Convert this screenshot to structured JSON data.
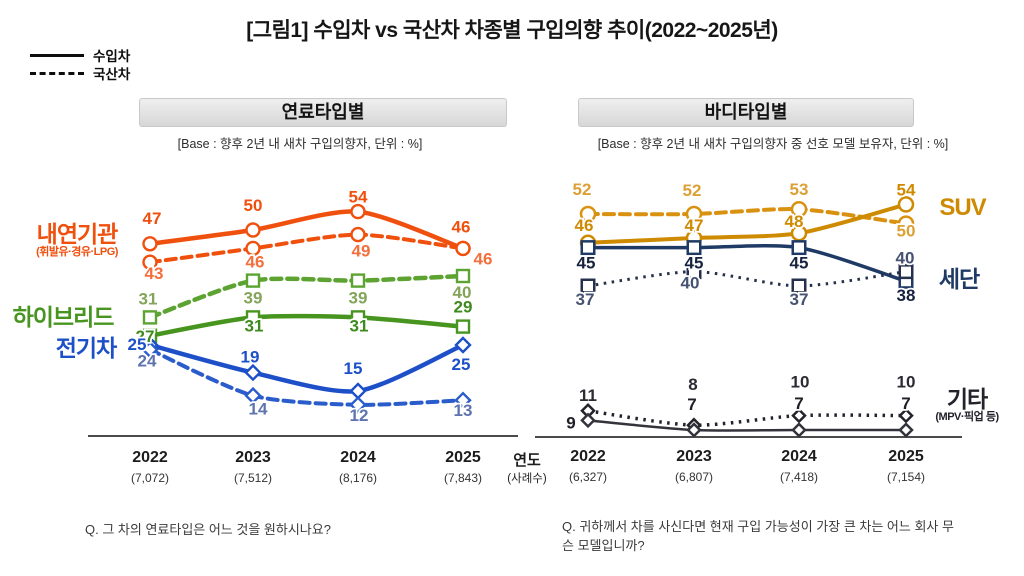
{
  "title": "[그림1] 수입차 vs 국산차 차종별 구입의향 추이(2022~2025년)",
  "legend": {
    "solid_label": "수입차",
    "dashed_label": "국산차"
  },
  "axis_note": {
    "year": "연도",
    "cases": "(사례수)"
  },
  "questions": {
    "left": "Q. 그 차의 연료타입은 어느 것을 원하시나요?",
    "right": "Q. 귀하께서 차를 사신다면 현재 구입 가능성이 가장 큰 차는 어느 회사 무슨 모델입니까?"
  },
  "chart_data": [
    {
      "type": "line",
      "title": "연료타입별",
      "base": "[Base : 향후 2년 내 새차 구입의향자, 단위 : %]",
      "x_categories": [
        "2022",
        "2023",
        "2024",
        "2025"
      ],
      "sample_sizes": [
        "(7,072)",
        "(7,512)",
        "(8,176)",
        "(7,843)"
      ],
      "xlabel": "연도",
      "unit": "%",
      "ylim": [
        0,
        60
      ],
      "grid": false,
      "legend_note": "실선=수입차, 점선=국산차",
      "series": [
        {
          "name": "내연기관 수입차",
          "category": "내연기관(휘발유·경유·LPG)",
          "origin": "수입차",
          "line": "solid",
          "marker": "circle",
          "color": "#F0500E",
          "label_color": "#F0500E",
          "values": [
            47,
            50,
            54,
            46
          ]
        },
        {
          "name": "내연기관 국산차",
          "category": "내연기관(휘발유·경유·LPG)",
          "origin": "국산차",
          "line": "dashed",
          "marker": "circle",
          "color": "#F0500E",
          "label_color": "#F3703E",
          "values": [
            43,
            46,
            49,
            46
          ]
        },
        {
          "name": "하이브리드 국산차",
          "category": "하이브리드",
          "origin": "국산차",
          "line": "dashed",
          "marker": "square",
          "color": "#5CA331",
          "label_color": "#83A45A",
          "values": [
            31,
            39,
            39,
            40
          ]
        },
        {
          "name": "하이브리드 수입차",
          "category": "하이브리드",
          "origin": "수입차",
          "line": "solid",
          "marker": "square",
          "color": "#47941F",
          "label_color": "#3E8A1C",
          "values": [
            27,
            31,
            31,
            29
          ]
        },
        {
          "name": "전기차 수입차",
          "category": "전기차",
          "origin": "수입차",
          "line": "solid",
          "marker": "diamond",
          "color": "#1D50C8",
          "label_color": "#1D50C8",
          "values": [
            25,
            19,
            15,
            25
          ]
        },
        {
          "name": "전기차 국산차",
          "category": "전기차",
          "origin": "국산차",
          "line": "dashed",
          "marker": "diamond",
          "color": "#2A5CCB",
          "label_color": "#5E74AE",
          "values": [
            24,
            14,
            12,
            13
          ]
        }
      ],
      "row_labels": [
        {
          "text": "내연기관",
          "sub": "(휘발유·경유·LPG)",
          "color": "#F0500E"
        },
        {
          "text": "하이브리드",
          "color": "#47941F"
        },
        {
          "text": "전기차",
          "color": "#1D50C8"
        }
      ]
    },
    {
      "type": "line",
      "title": "바디타입별",
      "base": "[Base : 향후 2년 내 새차 구입의향자 중 선호 모델 보유자, 단위 : %]",
      "x_categories": [
        "2022",
        "2023",
        "2024",
        "2025"
      ],
      "sample_sizes": [
        "(6,327)",
        "(6,807)",
        "(7,418)",
        "(7,154)"
      ],
      "xlabel": "연도",
      "unit": "%",
      "ylim": [
        0,
        60
      ],
      "grid": false,
      "legend_note": "실선=수입차, 점선=국산차",
      "series": [
        {
          "name": "SUV 국산차",
          "category": "SUV",
          "origin": "국산차",
          "line": "dashed",
          "marker": "circle",
          "color": "#D99110",
          "label_color": "#DCA136",
          "values": [
            52,
            52,
            53,
            50
          ]
        },
        {
          "name": "SUV 수입차",
          "category": "SUV",
          "origin": "수입차",
          "line": "solid",
          "marker": "circle",
          "color": "#CE8A00",
          "label_color": "#CE8A00",
          "values": [
            46,
            47,
            48,
            54
          ]
        },
        {
          "name": "세단 수입차",
          "category": "세단",
          "origin": "수입차",
          "line": "solid",
          "marker": "square",
          "color": "#1F3A64",
          "label_color": "#17233E",
          "values": [
            45,
            45,
            45,
            38
          ]
        },
        {
          "name": "세단 국산차",
          "category": "세단",
          "origin": "국산차",
          "line": "dotted",
          "marker": "square",
          "color": "#25304C",
          "label_color": "#465272",
          "values": [
            37,
            40,
            37,
            40
          ]
        },
        {
          "name": "기타 국산차",
          "category": "기타(MPV·픽업 등)",
          "origin": "국산차",
          "line": "dotted",
          "marker": "diamond",
          "color": "#23232B",
          "label_color": "#2B2B33",
          "values": [
            11,
            8,
            10,
            10
          ]
        },
        {
          "name": "기타 수입차",
          "category": "기타(MPV·픽업 등)",
          "origin": "수입차",
          "line": "solid",
          "marker": "diamond",
          "color": "#33333B",
          "label_color": "#1E1E26",
          "values": [
            9,
            7,
            7,
            7
          ]
        }
      ],
      "row_labels": [
        {
          "text": "SUV",
          "color": "#CE8A00"
        },
        {
          "text": "세단",
          "color": "#1F3A64"
        },
        {
          "text": "기타",
          "sub": "(MPV·픽업 등)",
          "color": "#23232B"
        }
      ]
    }
  ]
}
